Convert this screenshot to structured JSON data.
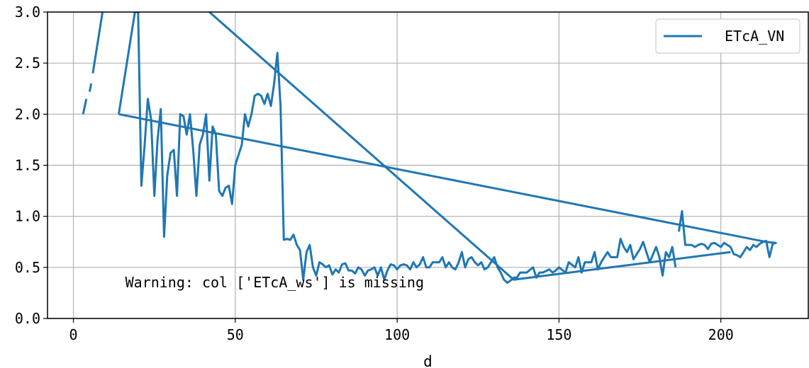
{
  "chart_data": {
    "type": "line",
    "title": "",
    "xlabel": "d",
    "ylabel": "",
    "xlim": [
      -8,
      227
    ],
    "ylim": [
      0,
      3
    ],
    "grid": true,
    "legend_position": "top-right",
    "x_ticks": [
      0,
      50,
      100,
      150,
      200
    ],
    "y_ticks": [
      0,
      0.5,
      1,
      1.5,
      2,
      2.5,
      3
    ],
    "x_tick_labels": [
      "0",
      "50",
      "100",
      "150",
      "200"
    ],
    "y_tick_labels": [
      "0.0",
      "0.5",
      "1.0",
      "1.5",
      "2.0",
      "2.5",
      "3.0"
    ],
    "annotation": "Warning: col ['ETcA_ws'] is missing",
    "colors": {
      "series": "#1f77b4",
      "grid": "#b0b0b0",
      "axes": "#000000"
    },
    "series": [
      {
        "name": "ETcA_VN",
        "segments": [
          [
            [
              3,
              2.0
            ],
            [
              4,
              2.15
            ]
          ],
          [
            [
              5,
              2.22
            ],
            [
              5.5,
              2.3
            ]
          ],
          [
            [
              6,
              2.4
            ],
            [
              9,
              3.0
            ]
          ],
          [
            [
              14,
              2.0
            ],
            [
              19,
              3.0
            ],
            [
              20,
              3.0
            ],
            [
              21,
              1.3
            ],
            [
              22,
              1.7
            ],
            [
              23,
              2.15
            ],
            [
              24,
              1.95
            ],
            [
              25,
              1.2
            ],
            [
              26,
              1.75
            ],
            [
              27,
              2.05
            ],
            [
              28,
              0.8
            ],
            [
              29,
              1.4
            ],
            [
              30,
              1.62
            ],
            [
              31,
              1.65
            ],
            [
              32,
              1.2
            ],
            [
              33,
              2.0
            ],
            [
              34,
              1.98
            ],
            [
              35,
              1.8
            ],
            [
              36,
              2.0
            ],
            [
              37,
              1.65
            ],
            [
              38,
              1.2
            ],
            [
              39,
              1.7
            ],
            [
              40,
              1.8
            ],
            [
              41,
              2.0
            ],
            [
              42,
              1.35
            ],
            [
              43,
              1.88
            ],
            [
              44,
              1.8
            ],
            [
              45,
              1.25
            ],
            [
              46,
              1.2
            ],
            [
              47,
              1.28
            ],
            [
              48,
              1.3
            ],
            [
              49,
              1.12
            ],
            [
              50,
              1.5
            ],
            [
              51,
              1.6
            ],
            [
              52,
              1.7
            ],
            [
              53,
              2.0
            ],
            [
              54,
              1.88
            ],
            [
              55,
              2.0
            ],
            [
              56,
              2.18
            ],
            [
              57,
              2.2
            ],
            [
              58,
              2.18
            ],
            [
              59,
              2.1
            ],
            [
              60,
              2.2
            ],
            [
              61,
              2.08
            ],
            [
              62,
              2.3
            ],
            [
              63,
              2.6
            ],
            [
              64,
              2.08
            ],
            [
              65,
              0.77
            ],
            [
              66,
              0.78
            ],
            [
              67,
              0.77
            ],
            [
              68,
              0.82
            ],
            [
              69,
              0.72
            ],
            [
              70,
              0.67
            ],
            [
              71,
              0.38
            ],
            [
              72,
              0.65
            ],
            [
              73,
              0.72
            ],
            [
              74,
              0.5
            ],
            [
              75,
              0.42
            ],
            [
              76,
              0.55
            ],
            [
              77,
              0.53
            ],
            [
              78,
              0.5
            ],
            [
              79,
              0.52
            ],
            [
              80,
              0.43
            ],
            [
              81,
              0.48
            ],
            [
              82,
              0.45
            ],
            [
              83,
              0.53
            ],
            [
              84,
              0.54
            ],
            [
              85,
              0.47
            ],
            [
              86,
              0.47
            ],
            [
              87,
              0.44
            ],
            [
              88,
              0.5
            ],
            [
              89,
              0.48
            ],
            [
              90,
              0.42
            ],
            [
              91,
              0.47
            ],
            [
              92,
              0.48
            ],
            [
              93,
              0.5
            ],
            [
              94,
              0.42
            ],
            [
              95,
              0.5
            ],
            [
              96,
              0.38
            ],
            [
              97,
              0.47
            ],
            [
              98,
              0.53
            ],
            [
              99,
              0.52
            ],
            [
              100,
              0.48
            ],
            [
              101,
              0.52
            ],
            [
              102,
              0.53
            ],
            [
              103,
              0.52
            ],
            [
              104,
              0.48
            ],
            [
              105,
              0.55
            ],
            [
              106,
              0.5
            ],
            [
              107,
              0.53
            ],
            [
              108,
              0.6
            ],
            [
              109,
              0.5
            ],
            [
              110,
              0.5
            ],
            [
              111,
              0.55
            ],
            [
              112,
              0.55
            ],
            [
              113,
              0.55
            ],
            [
              114,
              0.6
            ],
            [
              115,
              0.5
            ],
            [
              116,
              0.55
            ],
            [
              117,
              0.5
            ],
            [
              118,
              0.48
            ],
            [
              119,
              0.55
            ],
            [
              120,
              0.65
            ],
            [
              121,
              0.5
            ],
            [
              122,
              0.58
            ],
            [
              123,
              0.6
            ],
            [
              124,
              0.55
            ],
            [
              125,
              0.52
            ],
            [
              126,
              0.55
            ],
            [
              127,
              0.48
            ],
            [
              128,
              0.5
            ],
            [
              129,
              0.55
            ],
            [
              130,
              0.6
            ],
            [
              131,
              0.5
            ],
            [
              132,
              0.45
            ],
            [
              133,
              0.38
            ],
            [
              134,
              0.35
            ],
            [
              135,
              0.37
            ],
            [
              136,
              0.4
            ],
            [
              137,
              0.4
            ],
            [
              138,
              0.45
            ],
            [
              139,
              0.45
            ],
            [
              140,
              0.45
            ],
            [
              142,
              0.5
            ],
            [
              143,
              0.4
            ],
            [
              144,
              0.45
            ],
            [
              145,
              0.45
            ],
            [
              147,
              0.48
            ],
            [
              148,
              0.45
            ],
            [
              149,
              0.47
            ],
            [
              150,
              0.5
            ],
            [
              152,
              0.45
            ],
            [
              153,
              0.55
            ],
            [
              155,
              0.5
            ],
            [
              156,
              0.6
            ],
            [
              157,
              0.45
            ],
            [
              158,
              0.55
            ],
            [
              160,
              0.55
            ],
            [
              161,
              0.65
            ],
            [
              162,
              0.48
            ],
            [
              163,
              0.55
            ],
            [
              165,
              0.65
            ],
            [
              166,
              0.6
            ],
            [
              168,
              0.6
            ],
            [
              169,
              0.78
            ],
            [
              170,
              0.7
            ],
            [
              171,
              0.65
            ],
            [
              172,
              0.72
            ],
            [
              173,
              0.58
            ],
            [
              175,
              0.68
            ],
            [
              176,
              0.75
            ],
            [
              178,
              0.55
            ],
            [
              180,
              0.7
            ],
            [
              181,
              0.6
            ],
            [
              182,
              0.42
            ],
            [
              183,
              0.65
            ],
            [
              184,
              0.6
            ],
            [
              185,
              0.7
            ],
            [
              186,
              0.5
            ]
          ],
          [
            [
              187,
              0.85
            ],
            [
              188,
              1.05
            ],
            [
              189,
              0.72
            ],
            [
              190,
              0.72
            ],
            [
              191,
              0.72
            ],
            [
              192,
              0.7
            ],
            [
              193,
              0.72
            ],
            [
              194,
              0.73
            ],
            [
              195,
              0.72
            ],
            [
              196,
              0.68
            ],
            [
              197,
              0.73
            ],
            [
              198,
              0.74
            ],
            [
              199,
              0.72
            ],
            [
              200,
              0.7
            ],
            [
              201,
              0.74
            ],
            [
              202,
              0.72
            ],
            [
              203,
              0.7
            ],
            [
              204,
              0.63
            ],
            [
              205,
              0.62
            ],
            [
              206,
              0.6
            ],
            [
              207,
              0.65
            ],
            [
              208,
              0.7
            ],
            [
              209,
              0.67
            ],
            [
              210,
              0.72
            ],
            [
              211,
              0.7
            ],
            [
              212,
              0.73
            ],
            [
              213,
              0.75
            ],
            [
              214,
              0.76
            ],
            [
              215,
              0.6
            ],
            [
              216,
              0.73
            ],
            [
              217,
              0.74
            ],
            [
              214,
              0.75
            ],
            [
              14,
              2.0
            ]
          ],
          [
            [
              42,
              3.0
            ],
            [
              136,
              0.38
            ],
            [
              203,
              0.65
            ]
          ]
        ]
      }
    ]
  }
}
